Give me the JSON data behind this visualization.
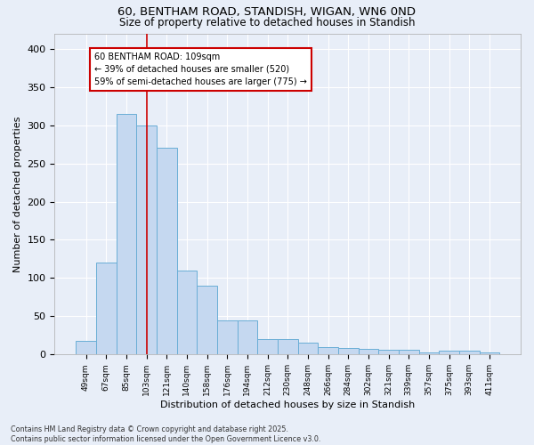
{
  "title_line1": "60, BENTHAM ROAD, STANDISH, WIGAN, WN6 0ND",
  "title_line2": "Size of property relative to detached houses in Standish",
  "xlabel": "Distribution of detached houses by size in Standish",
  "ylabel": "Number of detached properties",
  "footer_line1": "Contains HM Land Registry data © Crown copyright and database right 2025.",
  "footer_line2": "Contains public sector information licensed under the Open Government Licence v3.0.",
  "categories": [
    "49sqm",
    "67sqm",
    "85sqm",
    "103sqm",
    "121sqm",
    "140sqm",
    "158sqm",
    "176sqm",
    "194sqm",
    "212sqm",
    "230sqm",
    "248sqm",
    "266sqm",
    "284sqm",
    "302sqm",
    "321sqm",
    "339sqm",
    "357sqm",
    "375sqm",
    "393sqm",
    "411sqm"
  ],
  "values": [
    18,
    120,
    315,
    300,
    270,
    110,
    90,
    45,
    45,
    20,
    20,
    15,
    10,
    8,
    7,
    6,
    6,
    3,
    5,
    5,
    3
  ],
  "bar_color": "#c5d8f0",
  "bar_edge_color": "#6aaed6",
  "vline_index": 3,
  "vline_color": "#cc0000",
  "annotation_text": "60 BENTHAM ROAD: 109sqm\n← 39% of detached houses are smaller (520)\n59% of semi-detached houses are larger (775) →",
  "annotation_box_color": "#ffffff",
  "annotation_box_edge_color": "#cc0000",
  "bg_color": "#e8eef8",
  "plot_bg_color": "#e8eef8",
  "grid_color": "#ffffff",
  "ylim": [
    0,
    420
  ],
  "yticks": [
    0,
    50,
    100,
    150,
    200,
    250,
    300,
    350,
    400
  ]
}
